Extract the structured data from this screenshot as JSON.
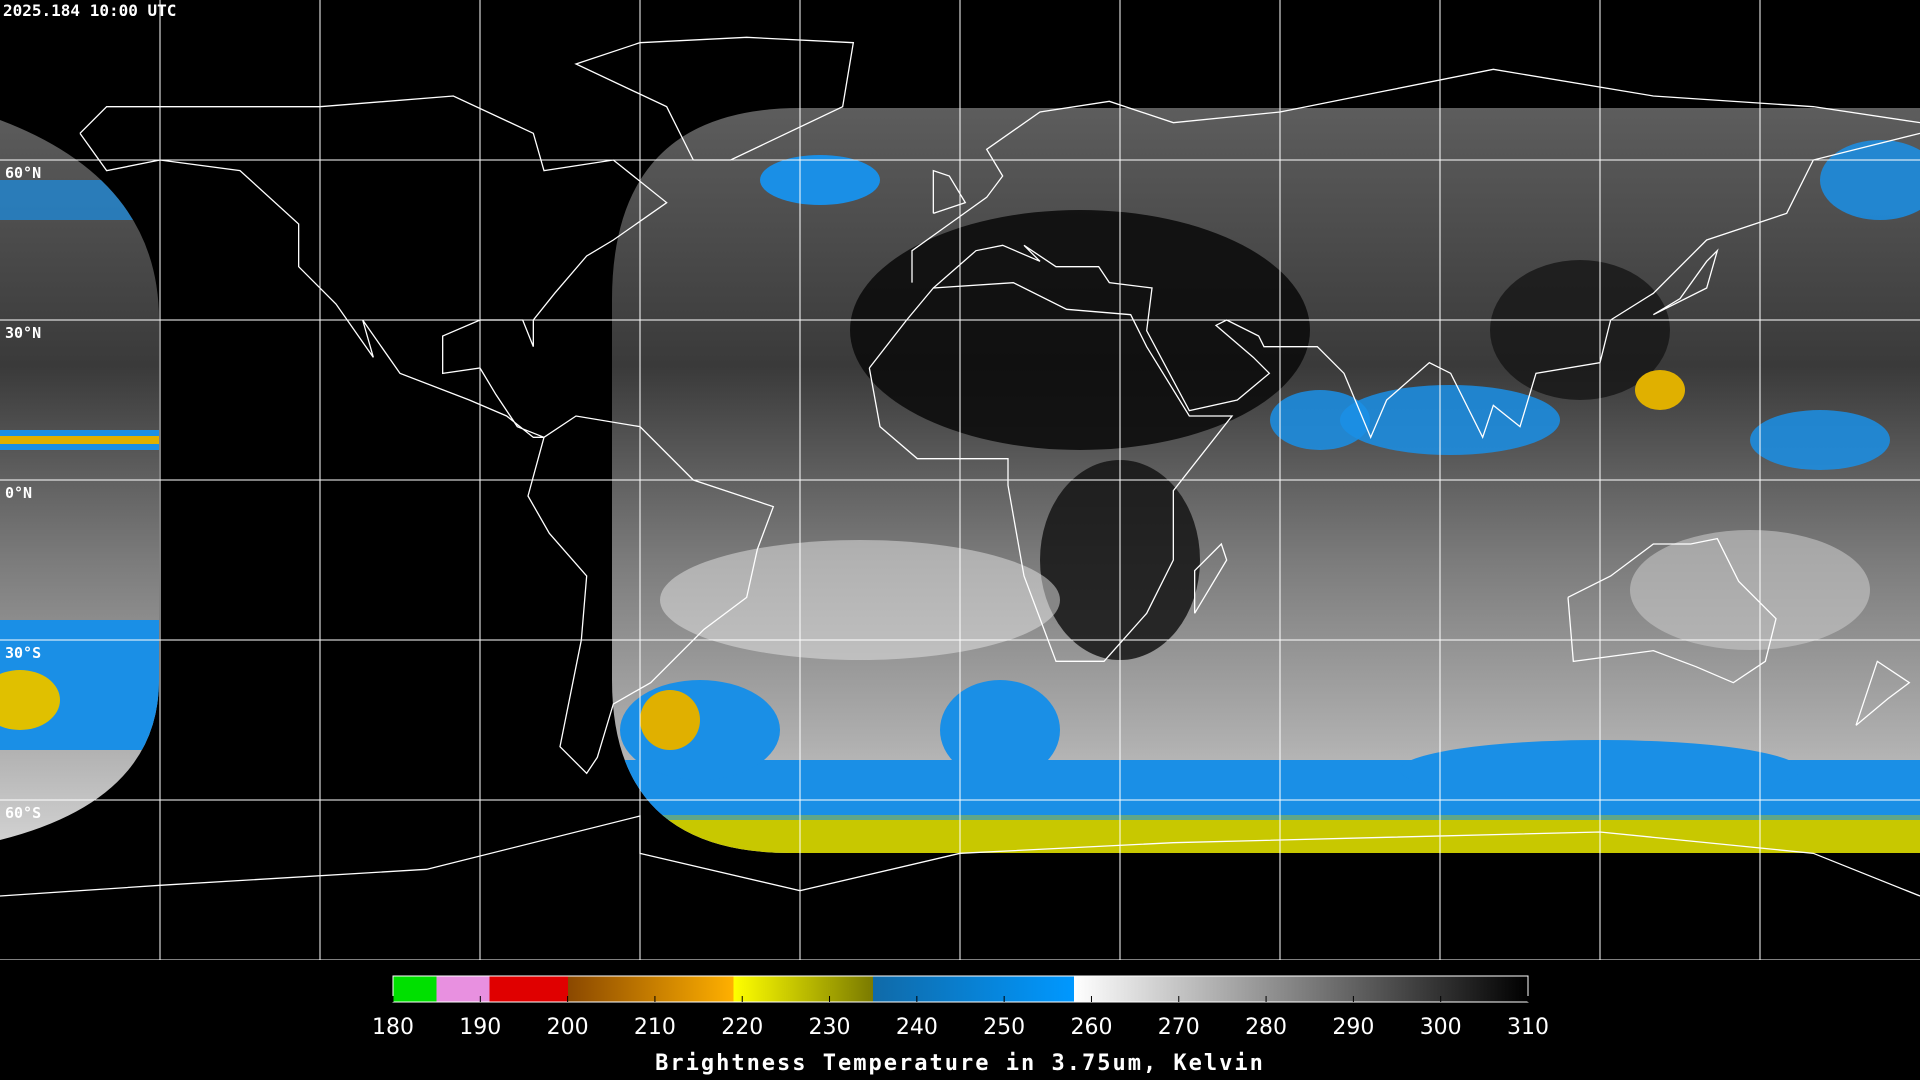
{
  "header": {
    "timestamp": "2025.184 10:00 UTC"
  },
  "map": {
    "latitude_labels": [
      "60°N",
      "30°N",
      "0°N",
      "30°S",
      "60°S"
    ]
  },
  "colorbar": {
    "range": [
      180,
      310
    ],
    "ticks": [
      180,
      190,
      200,
      210,
      220,
      230,
      240,
      250,
      260,
      270,
      280,
      290,
      300,
      310
    ],
    "title": "Brightness Temperature in 3.75um, Kelvin"
  }
}
